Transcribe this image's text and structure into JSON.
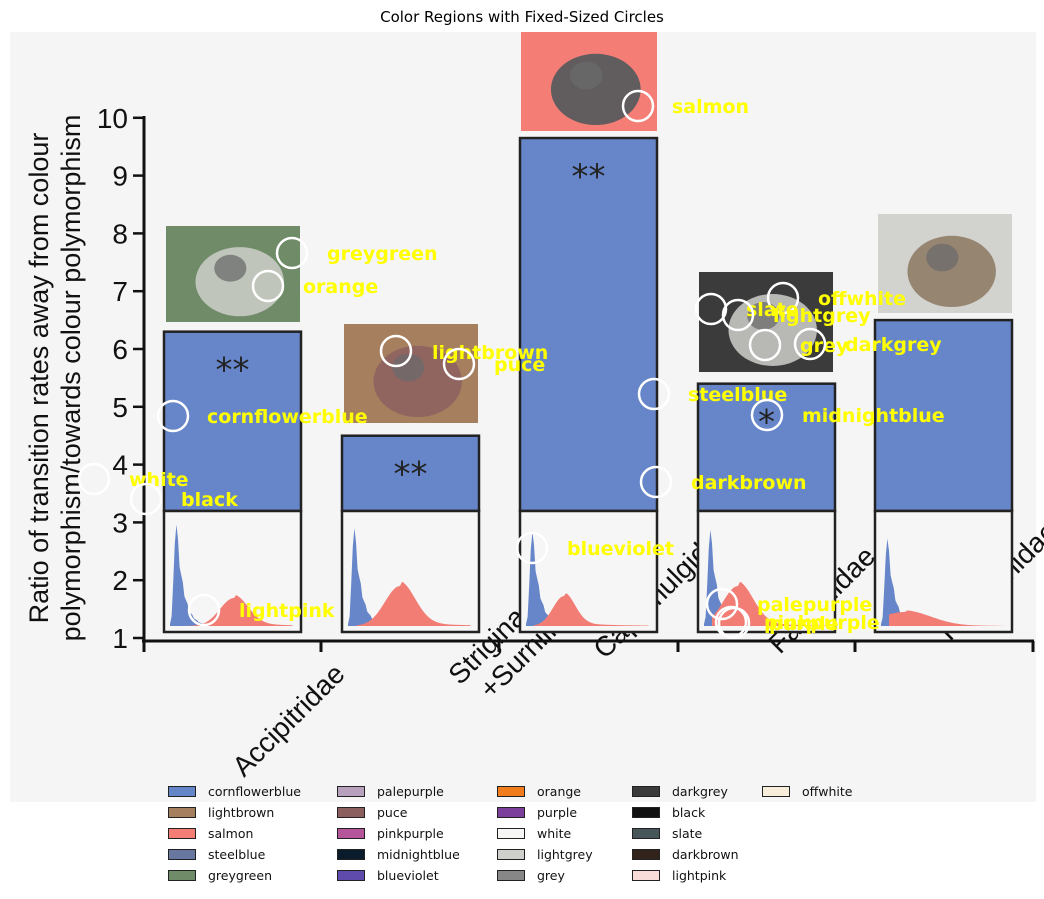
{
  "title": "Color Regions with Fixed-Sized Circles",
  "chart_data": {
    "type": "bar",
    "ylabel": [
      "Ratio of transition rates away from colour",
      "polymorphism/towards colour polymorphism"
    ],
    "xlabel": "",
    "ylim": [
      1,
      10
    ],
    "yticks": [
      "1",
      "2",
      "3",
      "4",
      "5",
      "6",
      "7",
      "8",
      "9",
      "10"
    ],
    "categories": [
      [
        "Accipitridae"
      ],
      [
        "Striginae",
        "+Surniinae"
      ],
      [
        "Caprimulgidae"
      ],
      [
        "Falconidae"
      ],
      [
        "Phasianidae"
      ]
    ],
    "values": [
      6.3,
      4.5,
      9.65,
      5.4,
      6.5
    ],
    "significance": [
      "**",
      "**",
      "**",
      "*",
      ""
    ],
    "bar_color": "#6686c9",
    "inset_colors": {
      "blue": "#6686c9",
      "red": "#f27d75"
    }
  },
  "circle_labels": [
    {
      "label": "greygreen"
    },
    {
      "label": "orange"
    },
    {
      "label": "cornflowerblue"
    },
    {
      "label": "white"
    },
    {
      "label": "black"
    },
    {
      "label": "lightpink"
    },
    {
      "label": "lightbrown"
    },
    {
      "label": "puce"
    },
    {
      "label": "salmon"
    },
    {
      "label": "steelblue"
    },
    {
      "label": "darkbrown"
    },
    {
      "label": "blueviolet"
    },
    {
      "label": "offwhite"
    },
    {
      "label": "slate"
    },
    {
      "label": "lightgrey"
    },
    {
      "label": "grey"
    },
    {
      "label": "darkgrey"
    },
    {
      "label": "midnightblue"
    },
    {
      "label": "palepurple"
    },
    {
      "label": "pinkpurple"
    },
    {
      "label": "purple"
    }
  ],
  "legend": [
    {
      "label": "cornflowerblue",
      "color": "#6486c8"
    },
    {
      "label": "lightbrown",
      "color": "#a57f5e"
    },
    {
      "label": "salmon",
      "color": "#f47e75"
    },
    {
      "label": "steelblue",
      "color": "#68779f"
    },
    {
      "label": "greygreen",
      "color": "#6f8b67"
    },
    {
      "label": "palepurple",
      "color": "#b8a1bc"
    },
    {
      "label": "puce",
      "color": "#8c5f5f"
    },
    {
      "label": "pinkpurple",
      "color": "#b5569a"
    },
    {
      "label": "midnightblue",
      "color": "#0a1b2c"
    },
    {
      "label": "blueviolet",
      "color": "#5e4bab"
    },
    {
      "label": "orange",
      "color": "#f17c1c"
    },
    {
      "label": "purple",
      "color": "#7c3f9c"
    },
    {
      "label": "white",
      "color": "#f6f6f4"
    },
    {
      "label": "lightgrey",
      "color": "#cfcfcb"
    },
    {
      "label": "grey",
      "color": "#878787"
    },
    {
      "label": "darkgrey",
      "color": "#3b3b3b"
    },
    {
      "label": "black",
      "color": "#111111"
    },
    {
      "label": "slate",
      "color": "#465659"
    },
    {
      "label": "darkbrown",
      "color": "#33231d"
    },
    {
      "label": "lightpink",
      "color": "#f9dcd8"
    },
    {
      "label": "offwhite",
      "color": "#f7eddb"
    }
  ]
}
